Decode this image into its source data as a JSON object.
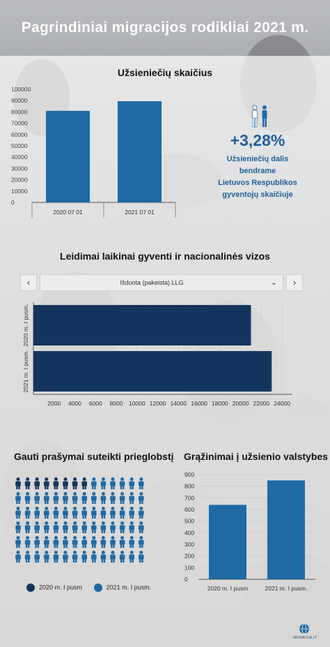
{
  "header": {
    "title": "Pagrindiniai migracijos rodikliai 2021 m."
  },
  "colors": {
    "primary": "#1f6aa5",
    "dark": "#13365f",
    "grid": "#cfcfcf"
  },
  "foreigners": {
    "title": "Užsieniečių skaičius",
    "stat_value": "+3,28%",
    "stat_text_lines": [
      "Užsieniečių dalis bendrame",
      "Lietuvos Respublikos",
      "gyventojų skaičiuje"
    ],
    "icon": "people-icon"
  },
  "permits": {
    "title": "Leidimai laikinai gyventi ir nacionalinės vizos",
    "dropdown_value": "Išduota (pakeista) LLG",
    "prev_label": "‹",
    "next_label": "›",
    "chevron": "⌄"
  },
  "asylum": {
    "title": "Gauti prašymai suteikti prieglobstį",
    "icon": "person-icon",
    "rows": 6,
    "per_row": 14,
    "counts": {
      "2020 m. I pusm": 8,
      "2021 m. I pusm.": 76
    },
    "legend": [
      {
        "label": "2020 m. I pusm",
        "color": "#13365f"
      },
      {
        "label": "2021 m. I pusm.",
        "color": "#1f6aa5"
      }
    ]
  },
  "returns": {
    "title": "Grąžinimai į užsienio valstybes"
  },
  "logo": {
    "text": "MIGRACIJA.LT",
    "icon": "globe-icon"
  },
  "chart_data": [
    {
      "type": "bar",
      "title": "Užsieniečių skaičius",
      "categories": [
        "2020 07 01",
        "2021 07 01"
      ],
      "values": [
        81000,
        89500
      ],
      "ylim": [
        0,
        100000
      ],
      "yticks": [
        "100000",
        "90000",
        "80000",
        "70000",
        "60000",
        "50000",
        "40000",
        "30000",
        "20000",
        "10000",
        "0"
      ],
      "grid": false,
      "color": "#1f6aa5"
    },
    {
      "type": "bar",
      "orientation": "horizontal",
      "title": "Leidimai laikinai gyventi ir nacionalinės vizos",
      "categories": [
        "2020 m. I pusm.",
        "2021 m. I pusm."
      ],
      "values": [
        21000,
        23000
      ],
      "xlim": [
        0,
        25000
      ],
      "xticks": [
        "2000",
        "4000",
        "6000",
        "8000",
        "10000",
        "12000",
        "14000",
        "16000",
        "18000",
        "20000",
        "22000",
        "24000"
      ],
      "grid": true,
      "color": "#13365f"
    },
    {
      "type": "bar",
      "title": "Grąžinimai į užsienio valstybes",
      "categories": [
        "2020 m. I pusm",
        "2021 m. I pusm."
      ],
      "values": [
        640,
        850
      ],
      "ylim": [
        0,
        900
      ],
      "yticks": [
        "900",
        "800",
        "700",
        "600",
        "500",
        "400",
        "300",
        "200",
        "100",
        "0"
      ],
      "grid": true,
      "color": "#1f6aa5"
    }
  ]
}
